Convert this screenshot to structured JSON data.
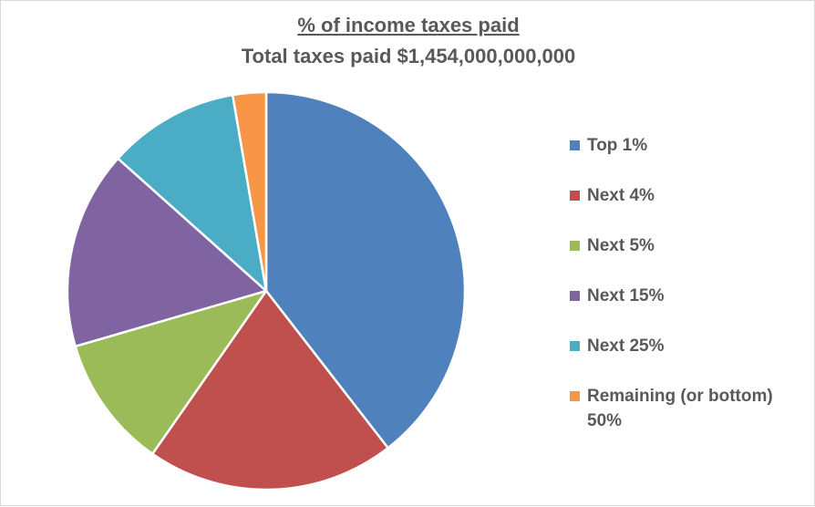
{
  "chart_data": {
    "type": "pie",
    "title": "% of income taxes paid",
    "subtitle": "Total taxes paid $1,454,000,000,000",
    "categories": [
      "Top 1%",
      "Next 4%",
      "Next 5%",
      "Next 15%",
      "Next 25%",
      "Remaining (or bottom) 50%"
    ],
    "values": [
      39.5,
      20.2,
      10.8,
      16.1,
      10.7,
      2.7
    ],
    "colors": [
      "#4f81bd",
      "#c0504d",
      "#9bbb59",
      "#8064a2",
      "#4bacc6",
      "#f79646"
    ],
    "legend_position": "right",
    "start_angle_deg": 0,
    "direction": "clockwise"
  }
}
